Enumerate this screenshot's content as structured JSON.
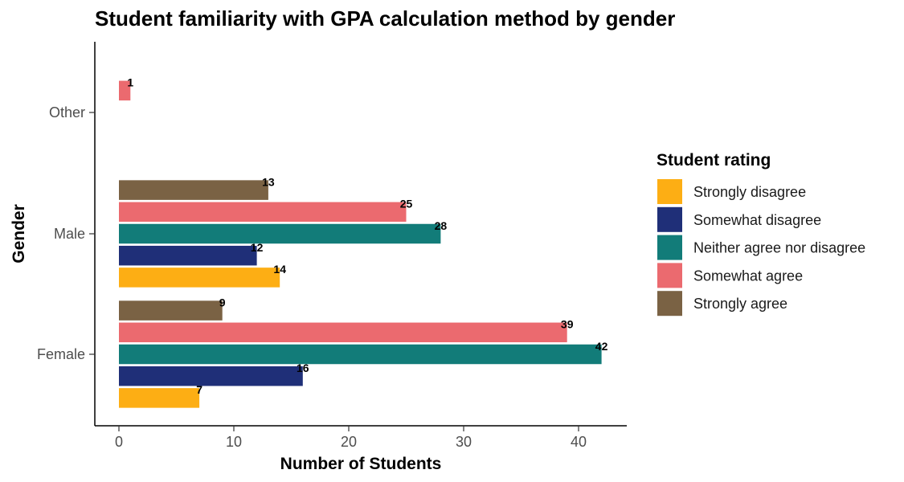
{
  "chart_data": {
    "type": "bar",
    "orientation": "horizontal",
    "title": "Student familiarity with GPA calculation method by gender",
    "xlabel": "Number of Students",
    "ylabel": "Gender",
    "categories": [
      "Female",
      "Male",
      "Other"
    ],
    "xlim": [
      0,
      44
    ],
    "x_ticks": [
      0,
      10,
      20,
      30,
      40
    ],
    "grid": false,
    "legend_title": "Student rating",
    "legend_position": "right",
    "series": [
      {
        "name": "Strongly disagree",
        "color": "#FDAE14",
        "values": [
          7,
          14,
          null
        ]
      },
      {
        "name": "Somewhat disagree",
        "color": "#1F2F78",
        "values": [
          16,
          12,
          null
        ]
      },
      {
        "name": "Neither agree nor disagree",
        "color": "#127C79",
        "values": [
          42,
          28,
          null
        ]
      },
      {
        "name": "Somewhat agree",
        "color": "#EB6A6F",
        "values": [
          39,
          25,
          1
        ]
      },
      {
        "name": "Strongly agree",
        "color": "#7A6244",
        "values": [
          9,
          13,
          null
        ]
      }
    ]
  }
}
